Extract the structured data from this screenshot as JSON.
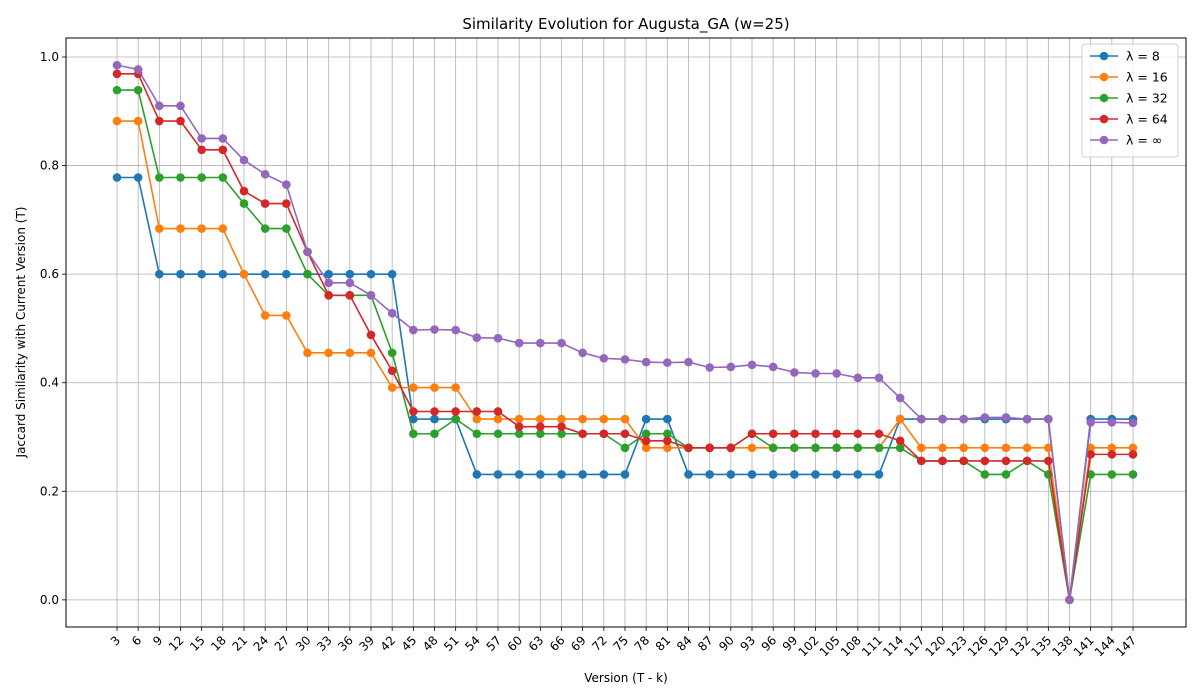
{
  "chart_data": {
    "type": "line",
    "title": "Similarity Evolution for Augusta_GA (w=25)",
    "xlabel": "Version (T - k)",
    "ylabel": "Jaccard Similarity with Current Version (T)",
    "ylim": [
      -0.05,
      1.035
    ],
    "yticks": [
      0.0,
      0.2,
      0.4,
      0.6,
      0.8,
      1.0
    ],
    "grid": true,
    "legend_position": "top-right",
    "categories": [
      "3",
      "6",
      "9",
      "12",
      "15",
      "18",
      "21",
      "24",
      "27",
      "30",
      "33",
      "36",
      "39",
      "42",
      "45",
      "48",
      "51",
      "54",
      "57",
      "60",
      "63",
      "66",
      "69",
      "72",
      "75",
      "78",
      "81",
      "84",
      "87",
      "90",
      "93",
      "96",
      "99",
      "102",
      "105",
      "108",
      "111",
      "114",
      "117",
      "120",
      "123",
      "126",
      "129",
      "132",
      "135",
      "138",
      "141",
      "144",
      "147"
    ],
    "series": [
      {
        "name": "λ = 8",
        "color": "#1f77b4",
        "values": [
          0.778,
          0.778,
          0.6,
          0.6,
          0.6,
          0.6,
          0.6,
          0.6,
          0.6,
          0.6,
          0.6,
          0.6,
          0.6,
          0.6,
          0.333,
          0.333,
          0.333,
          0.231,
          0.231,
          0.231,
          0.231,
          0.231,
          0.231,
          0.231,
          0.231,
          0.333,
          0.333,
          0.231,
          0.231,
          0.231,
          0.231,
          0.231,
          0.231,
          0.231,
          0.231,
          0.231,
          0.231,
          0.333,
          0.333,
          0.333,
          0.333,
          0.333,
          0.333,
          0.333,
          0.333,
          0.0,
          0.333,
          0.333,
          0.333
        ]
      },
      {
        "name": "λ = 16",
        "color": "#ff7f0e",
        "values": [
          0.882,
          0.882,
          0.684,
          0.684,
          0.684,
          0.684,
          0.6,
          0.524,
          0.524,
          0.455,
          0.455,
          0.455,
          0.455,
          0.391,
          0.391,
          0.391,
          0.391,
          0.333,
          0.333,
          0.333,
          0.333,
          0.333,
          0.333,
          0.333,
          0.333,
          0.28,
          0.28,
          0.28,
          0.28,
          0.28,
          0.28,
          0.28,
          0.28,
          0.28,
          0.28,
          0.28,
          0.28,
          0.333,
          0.28,
          0.28,
          0.28,
          0.28,
          0.28,
          0.28,
          0.28,
          0.0,
          0.28,
          0.28,
          0.28
        ]
      },
      {
        "name": "λ = 32",
        "color": "#2ca02c",
        "values": [
          0.939,
          0.939,
          0.778,
          0.778,
          0.778,
          0.778,
          0.73,
          0.684,
          0.684,
          0.6,
          0.561,
          0.561,
          0.561,
          0.455,
          0.306,
          0.306,
          0.333,
          0.306,
          0.306,
          0.306,
          0.306,
          0.306,
          0.306,
          0.306,
          0.28,
          0.306,
          0.306,
          0.28,
          0.28,
          0.28,
          0.306,
          0.28,
          0.28,
          0.28,
          0.28,
          0.28,
          0.28,
          0.28,
          0.256,
          0.256,
          0.256,
          0.231,
          0.231,
          0.256,
          0.231,
          0.0,
          0.231,
          0.231,
          0.231
        ]
      },
      {
        "name": "λ = 64",
        "color": "#d62728",
        "values": [
          0.969,
          0.969,
          0.882,
          0.882,
          0.829,
          0.829,
          0.753,
          0.73,
          0.73,
          0.641,
          0.561,
          0.561,
          0.488,
          0.422,
          0.347,
          0.347,
          0.347,
          0.347,
          0.347,
          0.319,
          0.319,
          0.319,
          0.306,
          0.306,
          0.306,
          0.293,
          0.293,
          0.28,
          0.28,
          0.28,
          0.306,
          0.306,
          0.306,
          0.306,
          0.306,
          0.306,
          0.306,
          0.293,
          0.256,
          0.256,
          0.256,
          0.256,
          0.256,
          0.256,
          0.256,
          0.0,
          0.268,
          0.268,
          0.268
        ]
      },
      {
        "name": "λ = ∞",
        "color": "#9467bd",
        "values": [
          0.985,
          0.977,
          0.91,
          0.91,
          0.85,
          0.85,
          0.81,
          0.784,
          0.765,
          0.641,
          0.584,
          0.584,
          0.561,
          0.528,
          0.497,
          0.498,
          0.497,
          0.483,
          0.482,
          0.473,
          0.473,
          0.473,
          0.455,
          0.445,
          0.443,
          0.438,
          0.437,
          0.438,
          0.428,
          0.429,
          0.433,
          0.429,
          0.419,
          0.417,
          0.417,
          0.409,
          0.409,
          0.372,
          0.333,
          0.333,
          0.333,
          0.336,
          0.336,
          0.333,
          0.333,
          0.0,
          0.327,
          0.327,
          0.326
        ]
      }
    ]
  }
}
